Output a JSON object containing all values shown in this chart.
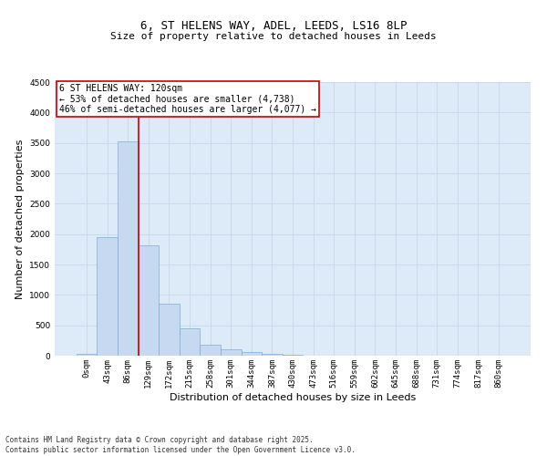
{
  "title_line1": "6, ST HELENS WAY, ADEL, LEEDS, LS16 8LP",
  "title_line2": "Size of property relative to detached houses in Leeds",
  "xlabel": "Distribution of detached houses by size in Leeds",
  "ylabel": "Number of detached properties",
  "bar_color": "#c6d9f1",
  "bar_edge_color": "#7bafd4",
  "categories": [
    "0sqm",
    "43sqm",
    "86sqm",
    "129sqm",
    "172sqm",
    "215sqm",
    "258sqm",
    "301sqm",
    "344sqm",
    "387sqm",
    "430sqm",
    "473sqm",
    "516sqm",
    "559sqm",
    "602sqm",
    "645sqm",
    "688sqm",
    "731sqm",
    "774sqm",
    "817sqm",
    "860sqm"
  ],
  "values": [
    30,
    1950,
    3530,
    1820,
    850,
    450,
    175,
    100,
    55,
    30,
    10,
    0,
    0,
    0,
    0,
    0,
    0,
    0,
    0,
    0,
    0
  ],
  "ylim": [
    0,
    4500
  ],
  "yticks": [
    0,
    500,
    1000,
    1500,
    2000,
    2500,
    3000,
    3500,
    4000,
    4500
  ],
  "annotation_text": "6 ST HELENS WAY: 120sqm\n← 53% of detached houses are smaller (4,738)\n46% of semi-detached houses are larger (4,077) →",
  "vline_pos": 2.5,
  "annotation_box_color": "#ffffff",
  "annotation_box_edge_color": "#cc0000",
  "grid_color": "#c8d8e8",
  "background_color": "#ddeaf7",
  "footnote": "Contains HM Land Registry data © Crown copyright and database right 2025.\nContains public sector information licensed under the Open Government Licence v3.0.",
  "title_fontsize": 9,
  "subtitle_fontsize": 8,
  "tick_fontsize": 6.5,
  "ylabel_fontsize": 8,
  "xlabel_fontsize": 8,
  "annotation_fontsize": 7,
  "footnote_fontsize": 5.5
}
